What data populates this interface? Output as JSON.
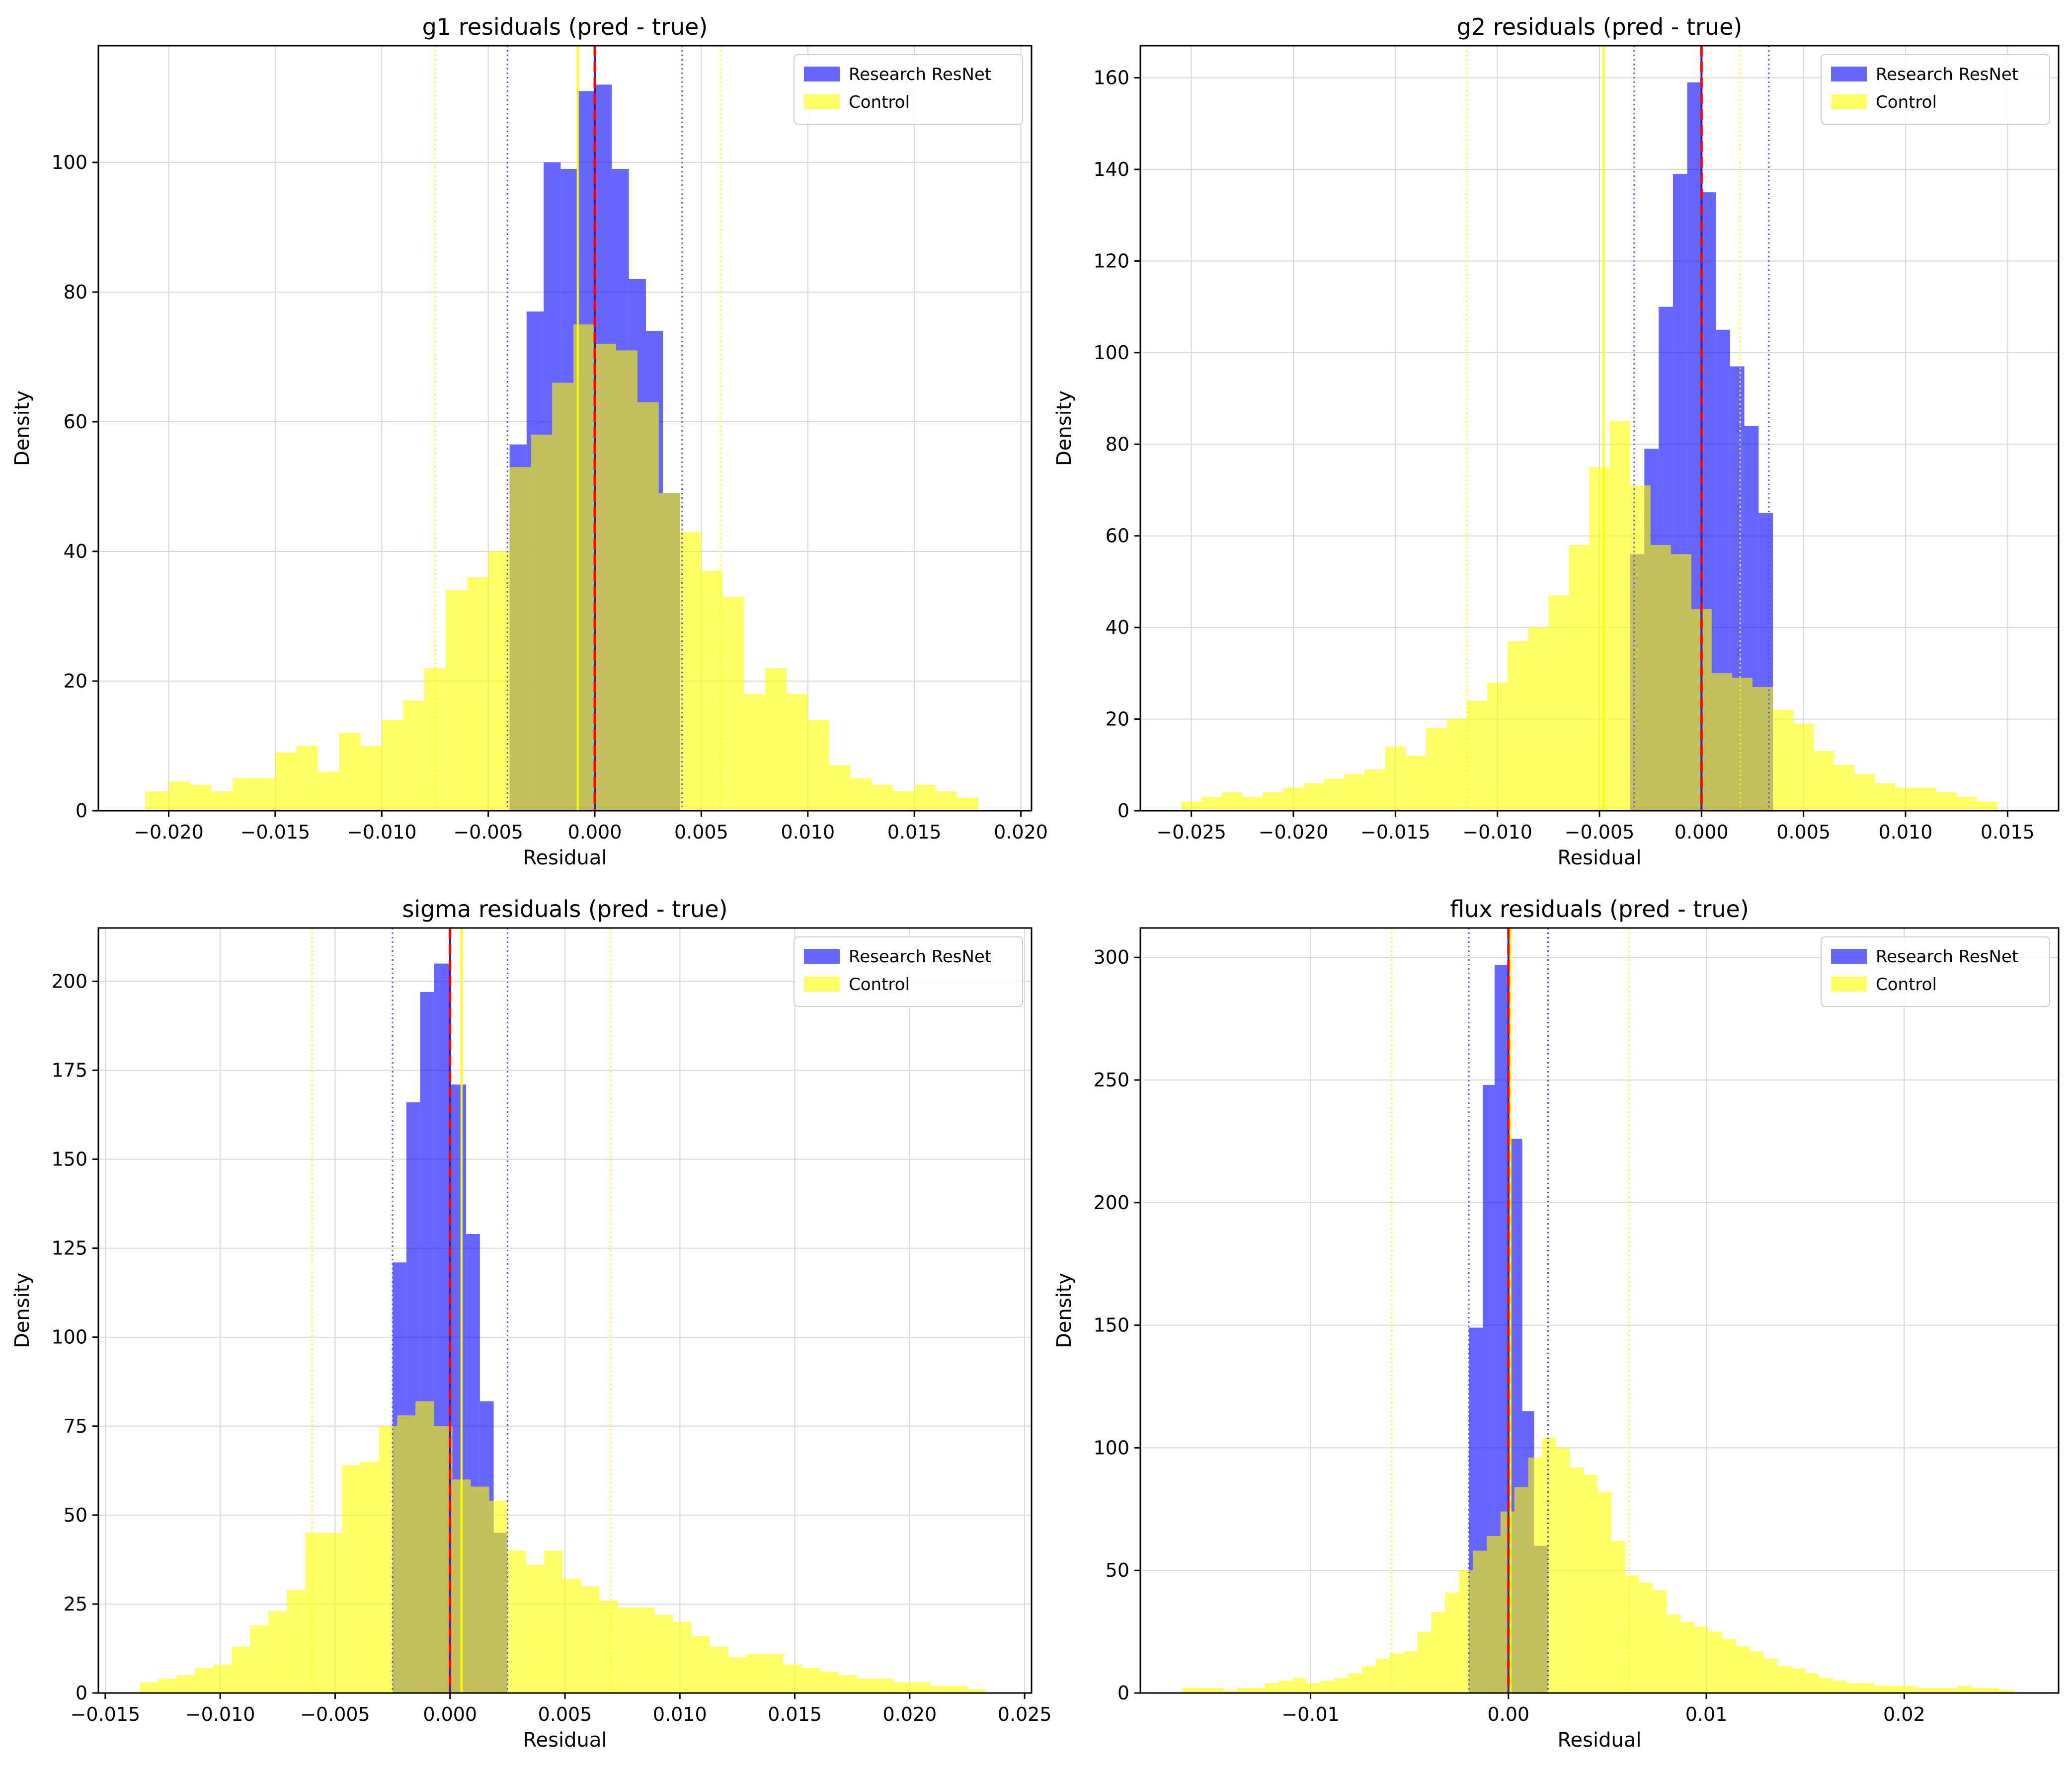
{
  "colors": {
    "series_a": "#0000ff",
    "series_b": "#ffff00",
    "overlap": "#c2c05c",
    "zero_line": "#ff0000",
    "grid": "#d9d9d9"
  },
  "chart_data": [
    {
      "type": "histogram",
      "title": "g1 residuals (pred - true)",
      "xlabel": "Residual",
      "ylabel": "Density",
      "xlim": [
        -0.0233,
        0.0205
      ],
      "ylim": [
        0,
        118
      ],
      "xticks": [
        -0.02,
        -0.015,
        -0.01,
        -0.005,
        0.0,
        0.005,
        0.01,
        0.015,
        0.02
      ],
      "xtick_labels": [
        "−0.020",
        "−0.015",
        "−0.010",
        "−0.005",
        "0.000",
        "0.005",
        "0.010",
        "0.015",
        "0.020"
      ],
      "yticks": [
        0,
        20,
        40,
        60,
        80,
        100
      ],
      "ytick_labels": [
        "0",
        "20",
        "40",
        "60",
        "80",
        "100"
      ],
      "grid": true,
      "legend_position": "top-right",
      "series": [
        {
          "name": "Research ResNet",
          "bin_edges": [
            -0.004,
            -0.0032,
            -0.0024,
            -0.0016,
            -0.0008,
            0.0,
            0.0008,
            0.0016,
            0.0024,
            0.0032,
            0.004
          ],
          "values": [
            56.5,
            77,
            100,
            99,
            111,
            112,
            99,
            82,
            74,
            49
          ]
        },
        {
          "name": "Control",
          "bin_edges": [
            -0.0211,
            -0.02,
            -0.019,
            -0.018,
            -0.017,
            -0.016,
            -0.015,
            -0.014,
            -0.013,
            -0.012,
            -0.011,
            -0.01,
            -0.009,
            -0.008,
            -0.007,
            -0.006,
            -0.005,
            -0.004,
            -0.003,
            -0.002,
            -0.001,
            0.0,
            0.001,
            0.002,
            0.003,
            0.004,
            0.005,
            0.006,
            0.007,
            0.008,
            0.009,
            0.01,
            0.011,
            0.012,
            0.013,
            0.014,
            0.015,
            0.016,
            0.017,
            0.018
          ],
          "values": [
            3,
            4.5,
            4,
            3,
            5,
            5,
            9,
            10,
            6,
            12,
            10,
            14,
            17,
            22,
            34,
            36,
            40,
            53,
            58,
            66,
            75,
            72,
            71,
            63,
            49,
            43,
            37,
            33,
            18,
            22,
            18,
            14,
            7,
            5,
            4,
            3,
            4,
            3,
            2
          ]
        }
      ],
      "vlines": {
        "series_a_mean": 0.0,
        "series_a_band": [
          -0.0041,
          0.0041
        ],
        "series_b_mean": -0.0008,
        "series_b_band": [
          -0.0075,
          0.0059
        ],
        "zero": 0.0
      }
    },
    {
      "type": "histogram",
      "title": "g2 residuals (pred - true)",
      "xlabel": "Residual",
      "ylabel": "Density",
      "xlim": [
        -0.0275,
        0.0175
      ],
      "ylim": [
        0,
        167
      ],
      "xticks": [
        -0.025,
        -0.02,
        -0.015,
        -0.01,
        -0.005,
        0.0,
        0.005,
        0.01,
        0.015
      ],
      "xtick_labels": [
        "−0.025",
        "−0.020",
        "−0.015",
        "−0.010",
        "−0.005",
        "0.000",
        "0.005",
        "0.010",
        "0.015"
      ],
      "yticks": [
        0,
        20,
        40,
        60,
        80,
        100,
        120,
        140,
        160
      ],
      "ytick_labels": [
        "0",
        "20",
        "40",
        "60",
        "80",
        "100",
        "120",
        "140",
        "160"
      ],
      "grid": true,
      "legend_position": "top-right",
      "series": [
        {
          "name": "Research ResNet",
          "bin_edges": [
            -0.0035,
            -0.0028,
            -0.0021,
            -0.0014,
            -0.0007,
            0.0,
            0.0007,
            0.0014,
            0.0021,
            0.0028,
            0.0035
          ],
          "values": [
            56,
            79,
            110,
            139,
            159,
            135,
            105,
            97,
            84,
            65
          ]
        },
        {
          "name": "Control",
          "bin_edges": [
            -0.0255,
            -0.0245,
            -0.0235,
            -0.0225,
            -0.0215,
            -0.0205,
            -0.0195,
            -0.0185,
            -0.0175,
            -0.0165,
            -0.0155,
            -0.0145,
            -0.0135,
            -0.0125,
            -0.0115,
            -0.0105,
            -0.0095,
            -0.0085,
            -0.0075,
            -0.0065,
            -0.0055,
            -0.0045,
            -0.0035,
            -0.0025,
            -0.0015,
            -0.0005,
            0.0005,
            0.0015,
            0.0025,
            0.0035,
            0.0045,
            0.0055,
            0.0065,
            0.0075,
            0.0085,
            0.0095,
            0.0105,
            0.0115,
            0.0125,
            0.0135,
            0.0145
          ],
          "values": [
            2,
            3,
            4,
            3,
            4,
            5,
            6,
            7,
            8,
            9,
            14,
            12,
            18,
            20,
            24,
            28,
            37,
            40,
            47,
            58,
            75,
            85,
            71,
            58,
            56,
            44,
            30,
            29,
            27,
            22,
            19,
            13,
            10,
            8,
            6,
            5,
            5,
            4,
            3,
            2
          ]
        }
      ],
      "vlines": {
        "series_a_mean": 0.0,
        "series_a_band": [
          -0.0033,
          0.0033
        ],
        "series_b_mean": -0.0048,
        "series_b_band": [
          -0.0115,
          0.0019
        ],
        "zero": 0.0
      }
    },
    {
      "type": "histogram",
      "title": "sigma residuals (pred - true)",
      "xlabel": "Residual",
      "ylabel": "Density",
      "xlim": [
        -0.0153,
        0.0253
      ],
      "ylim": [
        0,
        215
      ],
      "xticks": [
        -0.015,
        -0.01,
        -0.005,
        0.0,
        0.005,
        0.01,
        0.015,
        0.02,
        0.025
      ],
      "xtick_labels": [
        "−0.015",
        "−0.010",
        "−0.005",
        "0.000",
        "0.005",
        "0.010",
        "0.015",
        "0.020",
        "0.025"
      ],
      "yticks": [
        0,
        25,
        50,
        75,
        100,
        125,
        150,
        175,
        200
      ],
      "ytick_labels": [
        "0",
        "25",
        "50",
        "75",
        "100",
        "125",
        "150",
        "175",
        "200"
      ],
      "grid": true,
      "legend_position": "top-right",
      "series": [
        {
          "name": "Research ResNet",
          "bin_edges": [
            -0.0025,
            -0.0019,
            -0.0013,
            -0.0007,
            0.0,
            0.0007,
            0.0013,
            0.0019,
            0.0025
          ],
          "values": [
            121,
            166,
            197,
            205,
            171,
            129,
            82,
            45
          ]
        },
        {
          "name": "Control",
          "bin_edges": [
            -0.0135,
            -0.0127,
            -0.0119,
            -0.0111,
            -0.0103,
            -0.0095,
            -0.0087,
            -0.0079,
            -0.0071,
            -0.0063,
            -0.0055,
            -0.0047,
            -0.0039,
            -0.0031,
            -0.0023,
            -0.0015,
            -0.0007,
            0.0001,
            0.0009,
            0.0017,
            0.0025,
            0.0033,
            0.0041,
            0.0049,
            0.0057,
            0.0065,
            0.0073,
            0.0081,
            0.0089,
            0.0097,
            0.0105,
            0.0113,
            0.0121,
            0.0129,
            0.0137,
            0.0145,
            0.0153,
            0.0161,
            0.0169,
            0.0177,
            0.0185,
            0.0193,
            0.0201,
            0.0209,
            0.0217,
            0.0225,
            0.0233
          ],
          "values": [
            3,
            4,
            5,
            7,
            8,
            13,
            19,
            23,
            29,
            45,
            45,
            64,
            65,
            75,
            78,
            82,
            75,
            60,
            58,
            54,
            40,
            36,
            40,
            32,
            30,
            26,
            24,
            24,
            22,
            20,
            16,
            13,
            10,
            11,
            11,
            8,
            7,
            6,
            5,
            4,
            4,
            3,
            3,
            2,
            2,
            1
          ]
        }
      ],
      "vlines": {
        "series_a_mean": 0.0,
        "series_a_band": [
          -0.0025,
          0.0025
        ],
        "series_b_mean": 0.0005,
        "series_b_band": [
          -0.006,
          0.007
        ],
        "zero": 0.0
      }
    },
    {
      "type": "histogram",
      "title": "flux residuals (pred - true)",
      "xlabel": "Residual",
      "ylabel": "Density",
      "xlim": [
        -0.0186,
        0.0278
      ],
      "ylim": [
        0,
        312
      ],
      "xticks": [
        -0.01,
        0.0,
        0.01,
        0.02
      ],
      "xtick_labels": [
        "−0.01",
        "0.00",
        "0.01",
        "0.02"
      ],
      "yticks": [
        0,
        50,
        100,
        150,
        200,
        250,
        300
      ],
      "ytick_labels": [
        "0",
        "50",
        "100",
        "150",
        "200",
        "250",
        "300"
      ],
      "grid": true,
      "legend_position": "top-right",
      "series": [
        {
          "name": "Research ResNet",
          "bin_edges": [
            -0.002,
            -0.0013,
            -0.0007,
            0.0,
            0.0007,
            0.0013,
            0.002
          ],
          "values": [
            149,
            248,
            297,
            226,
            115,
            60
          ]
        },
        {
          "name": "Control",
          "bin_edges": [
            -0.0165,
            -0.0158,
            -0.0151,
            -0.0144,
            -0.0137,
            -0.013,
            -0.0123,
            -0.0116,
            -0.0109,
            -0.0102,
            -0.0095,
            -0.0088,
            -0.0081,
            -0.0074,
            -0.0067,
            -0.006,
            -0.0053,
            -0.0046,
            -0.0039,
            -0.0032,
            -0.0025,
            -0.0018,
            -0.0011,
            -0.0004,
            0.0003,
            0.001,
            0.0017,
            0.0024,
            0.0031,
            0.0038,
            0.0045,
            0.0052,
            0.0059,
            0.0066,
            0.0073,
            0.008,
            0.0087,
            0.0094,
            0.0101,
            0.0108,
            0.0115,
            0.0122,
            0.0129,
            0.0136,
            0.0143,
            0.015,
            0.0157,
            0.0164,
            0.0171,
            0.0178,
            0.0185,
            0.0192,
            0.0199,
            0.0206,
            0.0213,
            0.022,
            0.0227,
            0.0234,
            0.0241,
            0.0248,
            0.0255
          ],
          "values": [
            2,
            2,
            2,
            1,
            2,
            2,
            4,
            5,
            6,
            4,
            5,
            6,
            8,
            11,
            14,
            16,
            17,
            25,
            33,
            41,
            50,
            58,
            64,
            74,
            84,
            96,
            104,
            100,
            92,
            89,
            82,
            62,
            48,
            45,
            42,
            32,
            29,
            27,
            25,
            22,
            19,
            17,
            14,
            11,
            10,
            8,
            6,
            5,
            4,
            4,
            3,
            3,
            3,
            2,
            2,
            2,
            3,
            2,
            2,
            1
          ]
        }
      ],
      "vlines": {
        "series_a_mean": 0.0,
        "series_a_band": [
          -0.002,
          0.002
        ],
        "series_b_mean": 0.0001,
        "series_b_band": [
          -0.0059,
          0.0061
        ],
        "zero": 0.0
      }
    }
  ]
}
